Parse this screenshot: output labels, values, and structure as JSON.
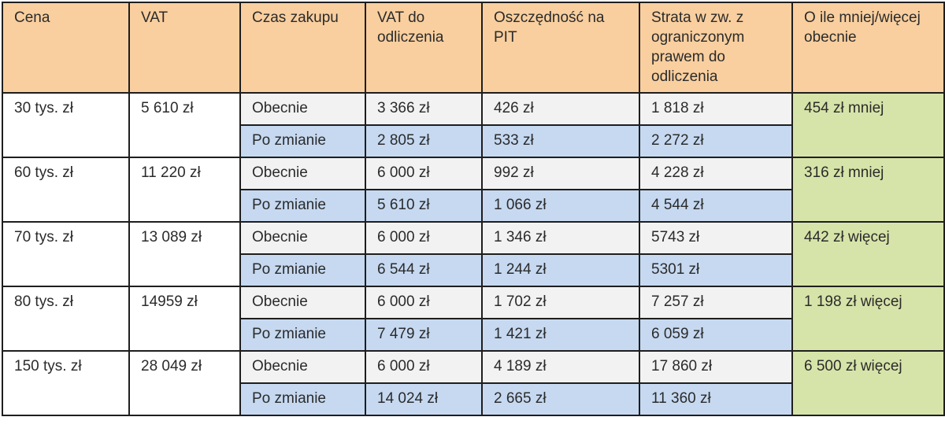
{
  "headers": [
    "Cena",
    "VAT",
    "Czas zakupu",
    "VAT do odliczenia",
    "Oszczędność na PIT",
    "Strata w zw. z ograniczonym prawem do odliczenia",
    "O ile mniej/więcej obecnie"
  ],
  "rows": [
    {
      "cena": "30 tys. zł",
      "vat": "5 610 zł",
      "roznica": "454 zł mniej",
      "obecnie": {
        "czas": "Obecnie",
        "vat_odl": "3 366 zł",
        "pit": "426 zł",
        "strata": "1 818 zł"
      },
      "po_zmianie": {
        "czas": "Po zmianie",
        "vat_odl": "2 805 zł",
        "pit": "533 zł",
        "strata": "2 272 zł"
      }
    },
    {
      "cena": "60 tys. zł",
      "vat": "11 220 zł",
      "roznica": "316 zł mniej",
      "obecnie": {
        "czas": "Obecnie",
        "vat_odl": "6 000 zł",
        "pit": "992 zł",
        "strata": "4 228 zł"
      },
      "po_zmianie": {
        "czas": "Po zmianie",
        "vat_odl": "5 610 zł",
        "pit": "1 066 zł",
        "strata": "4 544 zł"
      }
    },
    {
      "cena": "70 tys. zł",
      "vat": "13 089 zł",
      "roznica": "442 zł więcej",
      "obecnie": {
        "czas": "Obecnie",
        "vat_odl": "6 000 zł",
        "pit": "1 346 zł",
        "strata": "5743 zł"
      },
      "po_zmianie": {
        "czas": "Po zmianie",
        "vat_odl": "6 544 zł",
        "pit": "1 244 zł",
        "strata": "5301 zł"
      }
    },
    {
      "cena": "80 tys. zł",
      "vat": "14959 zł",
      "roznica": "1 198 zł więcej",
      "obecnie": {
        "czas": "Obecnie",
        "vat_odl": "6 000 zł",
        "pit": "1 702 zł",
        "strata": "7 257 zł"
      },
      "po_zmianie": {
        "czas": "Po zmianie",
        "vat_odl": "7 479 zł",
        "pit": "1 421 zł",
        "strata": "6 059 zł"
      }
    },
    {
      "cena": "150 tys. zł",
      "vat": "28 049 zł",
      "roznica": "6 500 zł więcej",
      "obecnie": {
        "czas": "Obecnie",
        "vat_odl": "6 000 zł",
        "pit": "4 189 zł",
        "strata": "17 860 zł"
      },
      "po_zmianie": {
        "czas": "Po zmianie",
        "vat_odl": "14 024 zł",
        "pit": "2 665 zł",
        "strata": "11 360 zł"
      }
    }
  ]
}
